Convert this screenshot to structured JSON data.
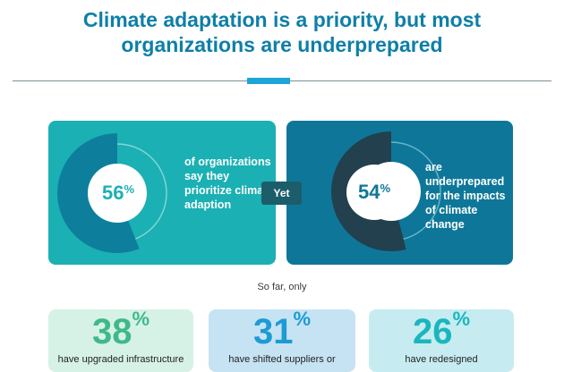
{
  "header": {
    "title_line1": "Climate adaptation is a priority, but most",
    "title_line2": "organizations are underprepared"
  },
  "left_card": {
    "value": "56",
    "unit": "%",
    "fraction": 0.56,
    "description": "of organizations say they prioritize climate adaption",
    "colors": {
      "background": "#1bb0b4",
      "fill": "#0d7f9c",
      "ring_outline": "#7fd6d6"
    }
  },
  "connector": {
    "label": "Yet",
    "color": "#1c5d6a"
  },
  "right_card": {
    "value": "54",
    "unit": "%",
    "fraction": 0.54,
    "description": "are underprepared for the impacts of climate change",
    "colors": {
      "background": "#0e7799",
      "fill": "#22404e",
      "ring_outline": "#66b3c8"
    }
  },
  "subhead": "So far, only",
  "stats": [
    {
      "value": "38",
      "unit": "%",
      "description": "have upgraded infrastructure",
      "color": "#3fb98b"
    },
    {
      "value": "31",
      "unit": "%",
      "description": "have shifted suppliers or",
      "color": "#1d9bd5"
    },
    {
      "value": "26",
      "unit": "%",
      "description": "have redesigned",
      "color": "#1ab6bd"
    }
  ]
}
